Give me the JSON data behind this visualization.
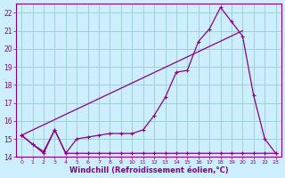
{
  "xlabel": "Windchill (Refroidissement éolien,°C)",
  "bg_color": "#cceeff",
  "line_color": "#880088",
  "grid_color": "#99cccc",
  "y_curve": [
    15.2,
    14.7,
    14.2,
    15.5,
    14.2,
    14.2,
    14.2,
    14.2,
    14.2,
    14.2,
    14.2,
    14.2,
    14.2,
    14.2,
    14.2,
    14.2,
    14.2,
    14.2,
    14.2,
    14.2,
    14.2,
    14.2,
    14.2,
    14.2
  ],
  "y_zigzag": [
    15.2,
    14.7,
    14.3,
    15.5,
    14.2,
    15.0,
    15.1,
    15.2,
    15.3,
    15.3,
    15.3,
    15.5,
    16.3,
    17.3,
    18.7,
    18.8,
    20.4,
    21.1,
    22.3,
    21.5,
    20.7,
    17.4,
    15.0,
    14.2
  ],
  "y_straight_start": 15.2,
  "y_straight_end": 21.0,
  "x_straight_start": 0,
  "x_straight_end": 20,
  "ylim_min": 14.0,
  "ylim_max": 22.5,
  "xlim_min": -0.5,
  "xlim_max": 23.5,
  "yticks": [
    14,
    15,
    16,
    17,
    18,
    19,
    20,
    21,
    22
  ],
  "xticks": [
    0,
    1,
    2,
    3,
    4,
    5,
    6,
    7,
    8,
    9,
    10,
    11,
    12,
    13,
    14,
    15,
    16,
    17,
    18,
    19,
    20,
    21,
    22,
    23
  ]
}
